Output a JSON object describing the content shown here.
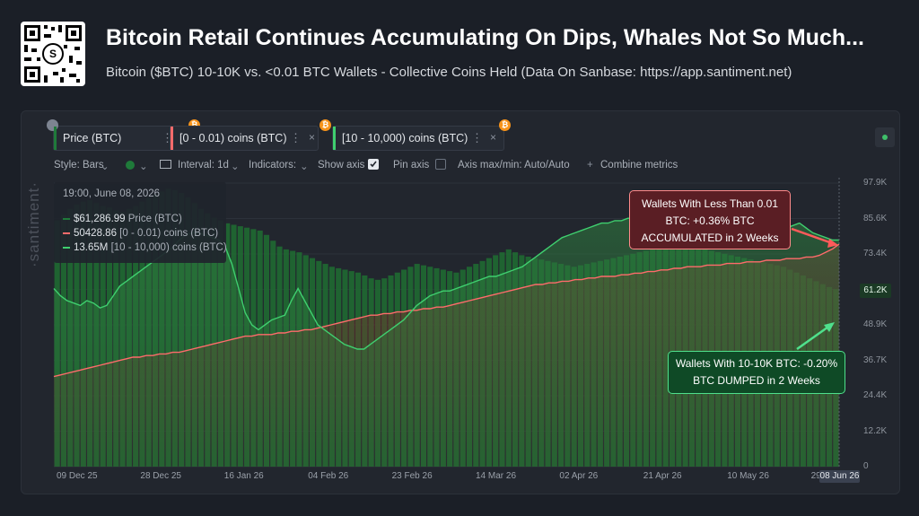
{
  "header": {
    "title": "Bitcoin Retail Continues Accumulating On Dips, Whales Not So Much...",
    "subtitle": "Bitcoin ($BTC) 10-10K vs. <0.01 BTC Wallets - Collective Coins Held (Data On Sanbase: https://app.santiment.net)"
  },
  "metrics": [
    {
      "label": "Price (BTC)",
      "color": "#1f7a3a"
    },
    {
      "label": "[0 - 0.01) coins (BTC)",
      "color": "#ff6b6b"
    },
    {
      "label": "[10 - 10,000) coins (BTC)",
      "color": "#3fcf6f"
    }
  ],
  "toolbar": {
    "style": "Style: Bars",
    "interval": "Interval: 1d",
    "indicators": "Indicators:",
    "show_axis": "Show axis",
    "pin_axis": "Pin axis",
    "axis_maxmin": "Axis max/min: Auto/Auto",
    "combine": "Combine metrics"
  },
  "tooltip": {
    "date": "19:00, June 08, 2026",
    "price": "$61,286.99",
    "price_label": "Price (BTC)",
    "retail": "50428.86",
    "retail_label": "[0 - 0.01) coins (BTC)",
    "whales": "13.65M",
    "whales_label": "[10 - 10,000) coins (BTC)"
  },
  "callouts": {
    "red_line1": "Wallets With Less Than 0.01",
    "red_line2": "BTC: +0.36% BTC",
    "red_line3": "ACCUMULATED in 2 Weeks",
    "green_line1": "Wallets With 10-10K BTC: -0.20%",
    "green_line2": "BTC DUMPED in 2 Weeks"
  },
  "watermark": "·santiment·",
  "y_ticks": [
    "97.9K",
    "85.6K",
    "73.4K",
    "61.2K",
    "48.9K",
    "36.7K",
    "24.4K",
    "12.2K",
    "0"
  ],
  "x_ticks": [
    "09 Dec 25",
    "28 Dec 25",
    "16 Jan 26",
    "04 Feb 26",
    "23 Feb 26",
    "14 Mar 26",
    "02 Apr 26",
    "21 Apr 26",
    "10 May 26",
    "29 May 26",
    "08 Jun 26"
  ],
  "price_tag": "61.2K",
  "chart_data": {
    "type": "bar",
    "xlabel": "",
    "ylabel": "",
    "ylim": [
      0,
      97900
    ],
    "grid": true,
    "series": [
      {
        "name": "Price (BTC)",
        "type": "bar",
        "color": "#1f7a3a",
        "values": [
          85000,
          87000,
          89000,
          90500,
          91500,
          92000,
          91000,
          90000,
          89500,
          88500,
          88000,
          89000,
          90000,
          91500,
          93000,
          94000,
          95000,
          96000,
          95500,
          94500,
          93000,
          91000,
          89000,
          87500,
          86000,
          85000,
          84000,
          83500,
          83000,
          82500,
          82000,
          81500,
          80000,
          78000,
          76000,
          75000,
          74500,
          74000,
          73000,
          72000,
          71000,
          70000,
          69000,
          68500,
          68000,
          67500,
          67000,
          66000,
          65000,
          64500,
          65000,
          66000,
          67000,
          68000,
          69000,
          70000,
          69500,
          69000,
          68500,
          68000,
          67500,
          67000,
          68000,
          69000,
          70000,
          71000,
          72000,
          73000,
          74000,
          75000,
          74000,
          73000,
          72500,
          72000,
          71500,
          71000,
          70500,
          70000,
          69500,
          69000,
          69500,
          70000,
          70500,
          71000,
          71500,
          72000,
          72500,
          73000,
          73500,
          74000,
          74500,
          75000,
          75500,
          76000,
          76500,
          77000,
          76500,
          76000,
          75500,
          75000,
          74500,
          74000,
          73500,
          73000,
          72500,
          72000,
          71500,
          71000,
          70500,
          70000,
          69500,
          69000,
          68000,
          67000,
          66000,
          65000,
          64000,
          63000,
          62000,
          61287
        ]
      },
      {
        "name": "[0 - 0.01) coins (BTC)",
        "type": "line",
        "color": "#ff6b6b",
        "axis": "indexed",
        "values": [
          0.18,
          0.19,
          0.2,
          0.21,
          0.22,
          0.23,
          0.24,
          0.25,
          0.26,
          0.27,
          0.28,
          0.29,
          0.3,
          0.3,
          0.31,
          0.31,
          0.32,
          0.32,
          0.33,
          0.33,
          0.34,
          0.35,
          0.36,
          0.37,
          0.38,
          0.39,
          0.4,
          0.41,
          0.42,
          0.43,
          0.43,
          0.44,
          0.44,
          0.44,
          0.45,
          0.45,
          0.46,
          0.46,
          0.47,
          0.47,
          0.48,
          0.49,
          0.5,
          0.51,
          0.52,
          0.53,
          0.54,
          0.55,
          0.56,
          0.56,
          0.57,
          0.57,
          0.58,
          0.58,
          0.59,
          0.59,
          0.6,
          0.6,
          0.61,
          0.61,
          0.62,
          0.63,
          0.64,
          0.65,
          0.66,
          0.67,
          0.68,
          0.69,
          0.7,
          0.71,
          0.72,
          0.73,
          0.74,
          0.75,
          0.75,
          0.76,
          0.76,
          0.77,
          0.77,
          0.78,
          0.78,
          0.79,
          0.79,
          0.8,
          0.8,
          0.8,
          0.81,
          0.81,
          0.82,
          0.82,
          0.83,
          0.83,
          0.84,
          0.84,
          0.85,
          0.85,
          0.86,
          0.86,
          0.86,
          0.87,
          0.87,
          0.87,
          0.88,
          0.88,
          0.88,
          0.89,
          0.89,
          0.89,
          0.9,
          0.9,
          0.9,
          0.91,
          0.91,
          0.91,
          0.92,
          0.92,
          0.93,
          0.95,
          0.97,
          1.0
        ]
      },
      {
        "name": "[10 - 10,000) coins (BTC)",
        "type": "line",
        "color": "#3fcf6f",
        "axis": "indexed",
        "values": [
          0.55,
          0.52,
          0.5,
          0.49,
          0.48,
          0.5,
          0.49,
          0.47,
          0.48,
          0.52,
          0.56,
          0.58,
          0.6,
          0.62,
          0.64,
          0.66,
          0.68,
          0.7,
          0.72,
          0.75,
          0.77,
          0.78,
          0.78,
          0.77,
          0.76,
          0.75,
          0.72,
          0.65,
          0.55,
          0.45,
          0.4,
          0.38,
          0.4,
          0.42,
          0.43,
          0.44,
          0.5,
          0.55,
          0.5,
          0.45,
          0.4,
          0.38,
          0.36,
          0.34,
          0.32,
          0.31,
          0.3,
          0.3,
          0.32,
          0.34,
          0.36,
          0.38,
          0.4,
          0.42,
          0.45,
          0.48,
          0.5,
          0.52,
          0.53,
          0.54,
          0.54,
          0.55,
          0.56,
          0.57,
          0.58,
          0.59,
          0.6,
          0.6,
          0.61,
          0.62,
          0.63,
          0.64,
          0.66,
          0.68,
          0.7,
          0.72,
          0.74,
          0.76,
          0.77,
          0.78,
          0.79,
          0.8,
          0.81,
          0.82,
          0.82,
          0.83,
          0.83,
          0.84,
          0.84,
          0.85,
          0.85,
          0.86,
          0.85,
          0.84,
          0.83,
          0.82,
          0.82,
          0.83,
          0.84,
          0.85,
          0.86,
          0.85,
          0.84,
          0.83,
          0.84,
          0.85,
          0.84,
          0.83,
          0.82,
          0.81,
          0.8,
          0.8,
          0.81,
          0.82,
          0.8,
          0.78,
          0.77,
          0.76,
          0.75,
          0.75
        ]
      }
    ]
  }
}
